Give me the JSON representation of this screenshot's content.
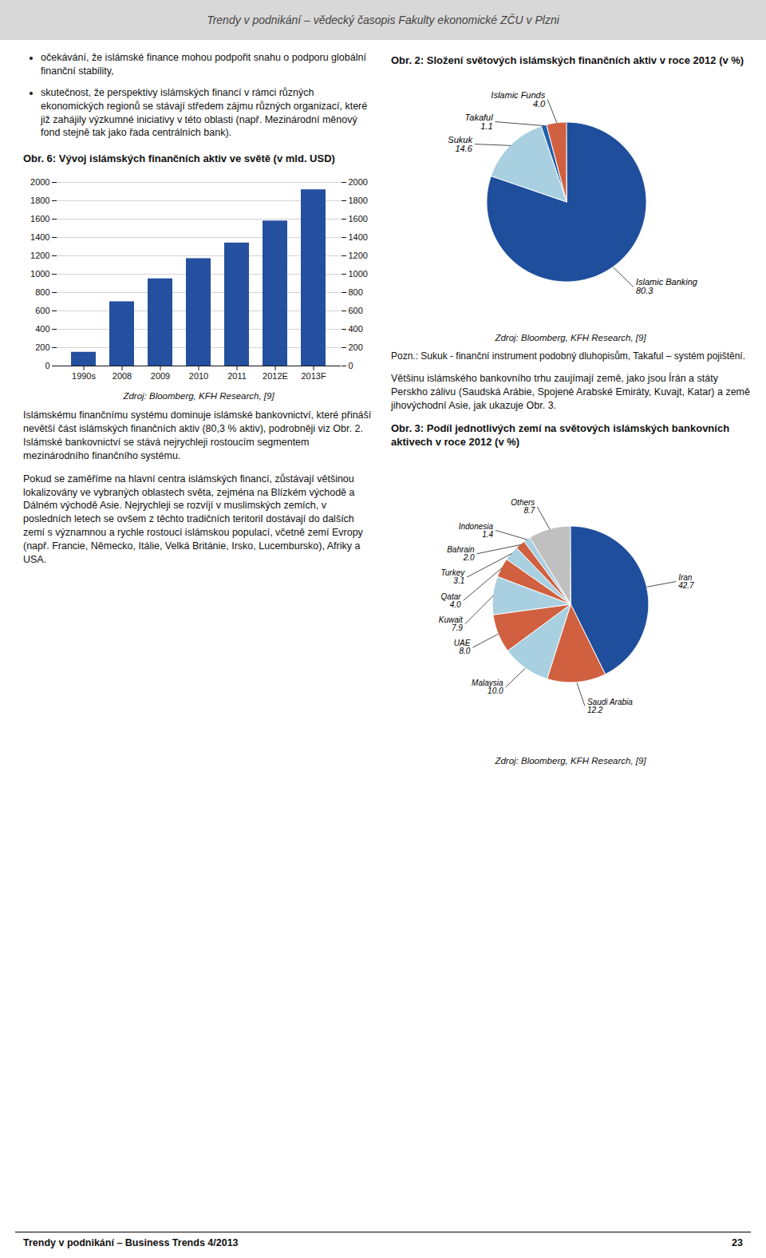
{
  "header_text": "Trendy v podnikání – vědecký časopis Fakulty ekonomické ZČU v Plzni",
  "footer_left": "Trendy v podnikání – Business Trends 4/2013",
  "footer_right": "23",
  "body_text": {
    "bullets": [
      "očekávání, že islámské finance mohou podpořit snahu o podporu globální finanční stability,",
      "skutečnost, že perspektivy islámských financí v rámci různých ekonomických regionů se stávají středem zájmu různých organizací, které již zahájily výzkumné iniciativy v této oblasti (např. Mezinárodní měnový fond stejně tak jako řada centrálních bank)."
    ],
    "right": [
      "Většinu islámského bankovního trhu zaujímají země, jako jsou Írán a státy Perskho zálivu (Saudská Arábie, Spojené Arabské Emiráty, Kuvajt, Katar) a země jihovýchodní Asie, jak ukazuje Obr. 3."
    ],
    "left": [
      "Islámskému finančnímu systému dominuje islámské bankovnictví, které přináší nevětší část islámských finančních aktiv (80,3 % aktiv), podrobněji viz Obr. 2. Islámské bankovnictví se stává nejrychleji rostoucím segmentem mezinárodního finančního systému.",
      "Pokud se zaměříme na hlavní centra islámských financí, zůstávají většinou lokalizovány ve vybraných oblastech světa, zejména na Blízkém východě a Dálném východě Asie. Nejrychleji se rozvíjí v muslimských zemích, v posledních letech se ovšem z těchto tradičních teritoriI dostávají do dalších zemí s významnou a rychle rostoucí islámskou populací, včetně zemí Evropy (např. Francie, Německo, Itálie, Velká Británie, Irsko, Lucembursko), Afriky a USA."
    ]
  },
  "chart_data": [
    {
      "type": "pie",
      "title": "Obr. 2: Složení světových islámských finančních aktiv v roce 2012 (v %)",
      "categories": [
        "Islamic Banking",
        "Sukuk",
        "Takaful",
        "Islamic Funds"
      ],
      "values": [
        80.3,
        14.6,
        1.1,
        4.0
      ],
      "value_labels": [
        "80.3",
        "14.6",
        "1.1",
        "4.0"
      ],
      "colors": [
        "#1f4e9c",
        "#a8d0e0",
        "#2060b0",
        "#d06040"
      ],
      "data_labels": true,
      "source": "Zdroj: Bloomberg, KFH Research, [9]",
      "note": "Pozn.: Sukuk - finanční instrument podobný dluhopisům, Takaful – systém pojištění."
    },
    {
      "type": "bar",
      "title": "Obr. 6: Vývoj islámských finančních aktiv ve světě (v mld. USD)",
      "categories": [
        "1990s",
        "2008",
        "2009",
        "2010",
        "2011",
        "2012E",
        "2013F"
      ],
      "values": [
        150,
        700,
        950,
        1170,
        1340,
        1580,
        1920
      ],
      "color": "#2550a0",
      "ylim": [
        0,
        2000
      ],
      "yticks": [
        0,
        200,
        400,
        600,
        800,
        1000,
        1200,
        1400,
        1600,
        1800,
        2000
      ],
      "y2lim": [
        0,
        2000
      ],
      "y2ticks": [
        0,
        200,
        400,
        600,
        800,
        1000,
        1200,
        1400,
        1600,
        1800,
        2000
      ],
      "grid": true,
      "source": "Zdroj: Bloomberg, KFH Research, [9]"
    },
    {
      "type": "pie",
      "title": "Obr. 3: Podíl jednotlivých zemí na světových islámských bankovních aktivech v roce 2012 (v %)",
      "categories": [
        "Iran",
        "Saudi Arabia",
        "Malaysia",
        "UAE",
        "Kuwait",
        "Qatar",
        "Turkey",
        "Bahrain",
        "Indonesia",
        "Others"
      ],
      "values": [
        42.7,
        12.2,
        10.0,
        8.0,
        7.9,
        4.0,
        3.1,
        2.0,
        1.4,
        8.7
      ],
      "value_labels": [
        "42.7",
        "12.2",
        "10.0",
        "8.0",
        "7.9",
        "4.0",
        "3.1",
        "2.0",
        "1.4",
        "8.7"
      ],
      "colors": [
        "#1f4e9c",
        "#d06040",
        "#a8d0e0",
        "#d06040",
        "#a8d0e0",
        "#d06040",
        "#a8d0e0",
        "#d06040",
        "#a8d0e0",
        "#c0c0c0"
      ],
      "data_labels": true,
      "source": "Zdroj: Bloomberg, KFH Research, [9]"
    }
  ]
}
